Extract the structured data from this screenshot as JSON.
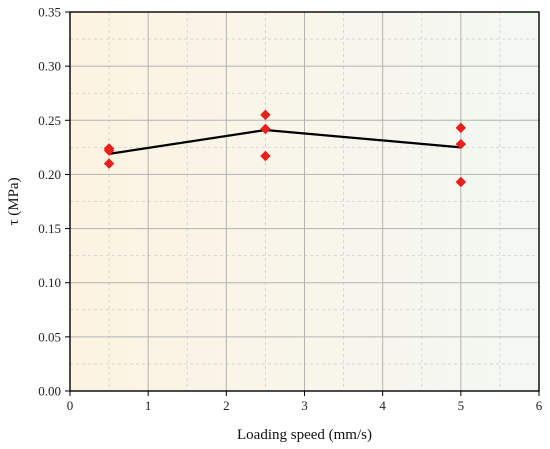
{
  "chart_data": {
    "type": "scatter",
    "xlabel": "Loading speed (mm/s)",
    "ylabel": "τ (MPa)",
    "xlim": [
      0,
      6
    ],
    "ylim": [
      0,
      0.35
    ],
    "x_ticks": [
      0,
      1,
      2,
      3,
      4,
      5,
      6
    ],
    "x_tick_labels": [
      "0",
      "1",
      "2",
      "3",
      "4",
      "5",
      "6"
    ],
    "y_ticks": [
      0,
      0.05,
      0.1,
      0.15,
      0.2,
      0.25,
      0.3,
      0.35
    ],
    "y_tick_labels": [
      "0.00",
      "0.05",
      "0.10",
      "0.15",
      "0.20",
      "0.25",
      "0.30",
      "0.35"
    ],
    "grid": true,
    "background_gradient": [
      "#fdf3e1",
      "#f3f8f3"
    ],
    "series": [
      {
        "type": "scatter",
        "marker": "diamond",
        "color": "#e8201c",
        "points": [
          {
            "x": 0.5,
            "y": 0.224
          },
          {
            "x": 0.5,
            "y": 0.222
          },
          {
            "x": 0.5,
            "y": 0.21
          },
          {
            "x": 2.5,
            "y": 0.255
          },
          {
            "x": 2.5,
            "y": 0.242
          },
          {
            "x": 2.5,
            "y": 0.217
          },
          {
            "x": 5.0,
            "y": 0.243
          },
          {
            "x": 5.0,
            "y": 0.228
          },
          {
            "x": 5.0,
            "y": 0.193
          }
        ]
      },
      {
        "type": "line",
        "color": "#000000",
        "points": [
          {
            "x": 0.5,
            "y": 0.219
          },
          {
            "x": 2.5,
            "y": 0.241
          },
          {
            "x": 5.0,
            "y": 0.225
          }
        ]
      }
    ]
  }
}
